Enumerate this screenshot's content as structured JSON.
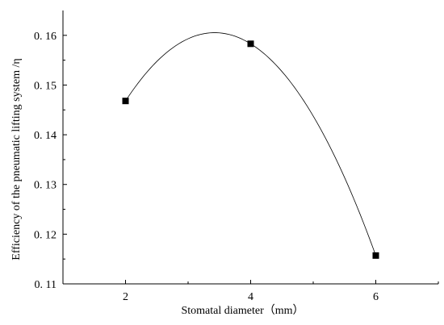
{
  "chart_data": {
    "type": "scatter",
    "title": "",
    "xlabel": "Stomatal diameter（mm）",
    "ylabel": "Efficiency of the pneumatic lifting system /η",
    "xlim": [
      1,
      7
    ],
    "ylim": [
      0.11,
      0.165
    ],
    "xticks": [
      2,
      4,
      6
    ],
    "yticks": [
      0.11,
      0.12,
      0.13,
      0.14,
      0.15,
      0.16
    ],
    "ytick_labels": [
      "0. 11",
      "0. 12",
      "0. 13",
      "0. 14",
      "0. 15",
      "0. 16"
    ],
    "xtick_labels": [
      "2",
      "4",
      "6"
    ],
    "grid": false,
    "series": [
      {
        "marker": "square",
        "color": "#000000",
        "x": [
          2,
          4,
          6
        ],
        "y": [
          0.1468,
          0.1583,
          0.1157
        ],
        "curve": "smooth-fit"
      }
    ]
  }
}
